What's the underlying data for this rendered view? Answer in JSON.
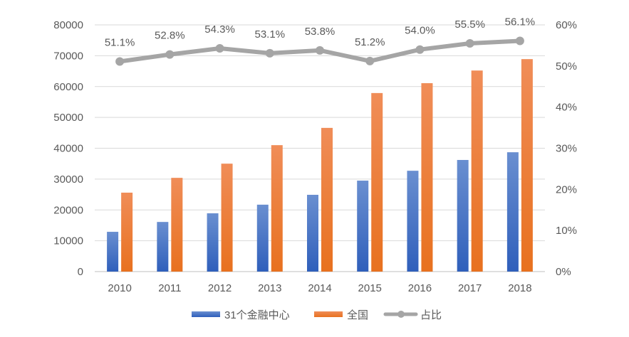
{
  "chart_data": {
    "type": "bar",
    "categories": [
      "2010",
      "2011",
      "2012",
      "2013",
      "2014",
      "2015",
      "2016",
      "2017",
      "2018"
    ],
    "series": [
      {
        "name": "31个金融中心",
        "kind": "bar",
        "axis": "left",
        "color": "#4472c4",
        "values": [
          12900,
          16100,
          18900,
          21700,
          24900,
          29500,
          32700,
          36200,
          38700
        ]
      },
      {
        "name": "全国",
        "kind": "bar",
        "axis": "left",
        "color": "#ed7d31",
        "values": [
          25600,
          30400,
          35000,
          41000,
          46600,
          57900,
          61100,
          65200,
          68900
        ]
      },
      {
        "name": "占比",
        "kind": "line",
        "axis": "right",
        "color": "#a5a5a5",
        "values": [
          51.1,
          52.8,
          54.3,
          53.1,
          53.8,
          51.2,
          54.0,
          55.5,
          56.1
        ],
        "labels": [
          "51.1%",
          "52.8%",
          "54.3%",
          "53.1%",
          "53.8%",
          "51.2%",
          "54.0%",
          "55.5%",
          "56.1%"
        ]
      }
    ],
    "ylim": [
      0,
      80000
    ],
    "yticks": [
      "0",
      "10000",
      "20000",
      "30000",
      "40000",
      "50000",
      "60000",
      "70000",
      "80000"
    ],
    "y2lim": [
      0,
      60
    ],
    "y2ticks": [
      "0%",
      "10%",
      "20%",
      "30%",
      "40%",
      "50%",
      "60%"
    ],
    "grid": true,
    "legend": "bottom"
  }
}
